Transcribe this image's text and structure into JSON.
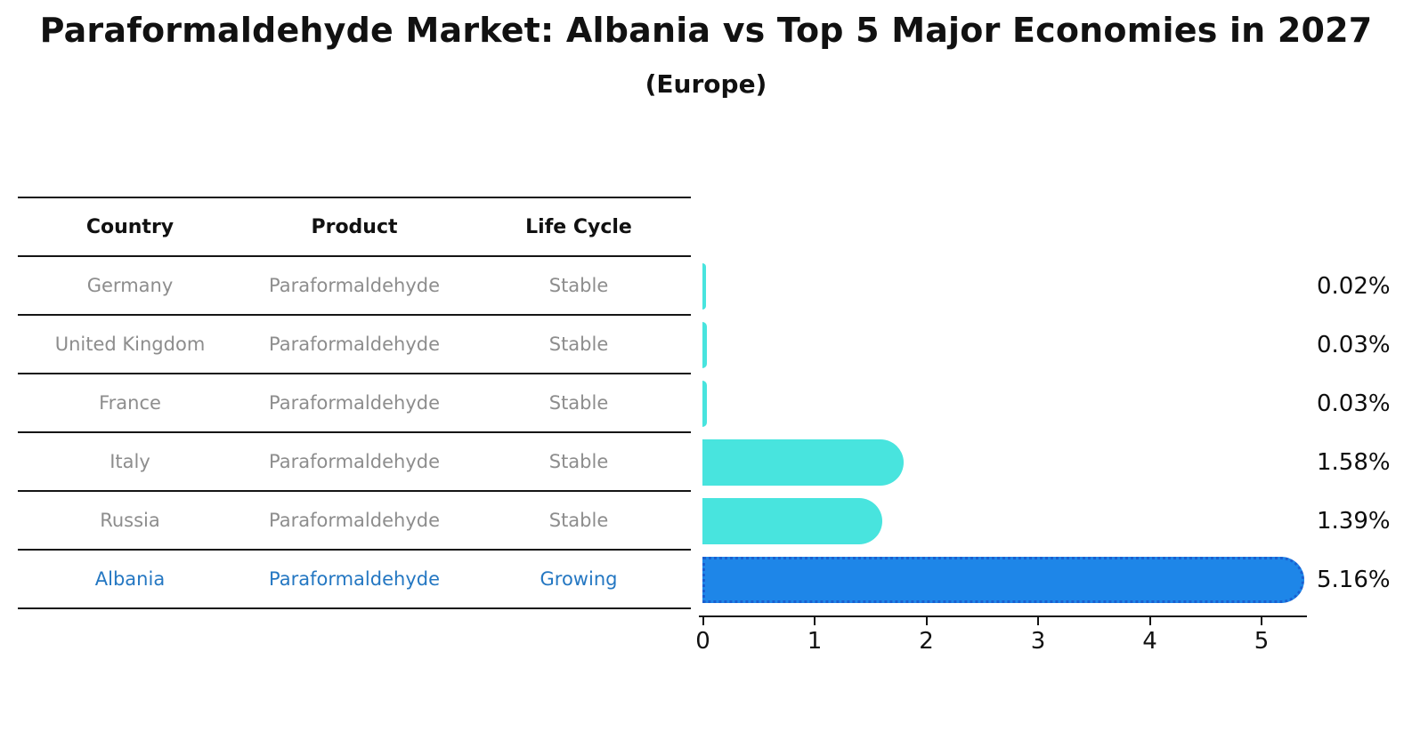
{
  "title": "Paraformaldehyde Market: Albania vs Top 5 Major Economies in 2027",
  "subtitle": "(Europe)",
  "table": {
    "headers": [
      "Country",
      "Product",
      "Life Cycle"
    ],
    "rows": [
      {
        "country": "Germany",
        "product": "Paraformaldehyde",
        "life_cycle": "Stable",
        "highlighted": false
      },
      {
        "country": "United Kingdom",
        "product": "Paraformaldehyde",
        "life_cycle": "Stable",
        "highlighted": false
      },
      {
        "country": "France",
        "product": "Paraformaldehyde",
        "life_cycle": "Stable",
        "highlighted": false
      },
      {
        "country": "Italy",
        "product": "Paraformaldehyde",
        "life_cycle": "Stable",
        "highlighted": false
      },
      {
        "country": "Russia",
        "product": "Paraformaldehyde",
        "life_cycle": "Stable",
        "highlighted": false
      },
      {
        "country": "Albania",
        "product": "Paraformaldehyde",
        "life_cycle": "Growing",
        "highlighted": true
      }
    ]
  },
  "chart_data": {
    "type": "bar",
    "orientation": "horizontal",
    "title": "Paraformaldehyde Market: Albania vs Top 5 Major Economies in 2027",
    "subtitle": "(Europe)",
    "categories": [
      "Germany",
      "United Kingdom",
      "France",
      "Italy",
      "Russia",
      "Albania"
    ],
    "values": [
      0.02,
      0.03,
      0.03,
      1.58,
      1.39,
      5.16
    ],
    "value_labels": [
      "0.02%",
      "0.03%",
      "0.03%",
      "1.58%",
      "1.39%",
      "5.16%"
    ],
    "highlight_category": "Albania",
    "x_ticks": [
      "0",
      "1",
      "2",
      "3",
      "4",
      "5"
    ],
    "xlim": [
      0,
      5.4
    ],
    "grid": false,
    "legend": "none"
  },
  "colors": {
    "bar_default": "#48e4de",
    "bar_highlight": "#1e86e8",
    "bar_highlight_border": "#1a5fd0",
    "text_muted": "#8d8d8d",
    "text_highlight": "#2477c2",
    "axis": "#151515"
  }
}
